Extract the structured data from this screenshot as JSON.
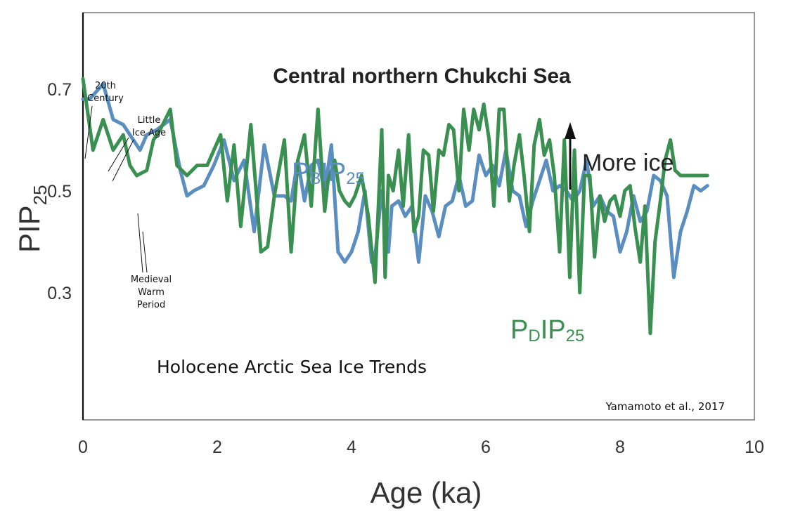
{
  "chart_data": {
    "type": "line",
    "title": "Central northern Chukchi Sea",
    "subtitle": "Holocene Arctic Sea Ice Trends",
    "xlabel": "Age (ka)",
    "ylabel": {
      "main": "PIP",
      "sub": "25"
    },
    "xlim": [
      0,
      10
    ],
    "ylim": [
      0.05,
      0.85
    ],
    "x_ticks": [
      "0",
      "2",
      "4",
      "6",
      "8",
      "10"
    ],
    "y_ticks": [
      "0.7",
      "0.5",
      "0.3"
    ],
    "y_tick_values": [
      0.7,
      0.5,
      0.3
    ],
    "x_tick_values": [
      0,
      2,
      4,
      6,
      8,
      10
    ],
    "grid": false,
    "credit": "Yamamoto et al., 2017",
    "arrow_label": "More ice",
    "annotations": {
      "twentieth": [
        "20th",
        "Century"
      ],
      "lia": [
        "Little",
        "Ice Age"
      ],
      "mwp": [
        "Medieval",
        "Warm",
        "Period"
      ]
    },
    "series": [
      {
        "name": "PBIP25",
        "label_main": "P",
        "label_sub": "B",
        "label_main2": "IP",
        "label_sub2": "25",
        "color": "#5b8ec0",
        "x": [
          0.0,
          0.1,
          0.3,
          0.45,
          0.6,
          0.75,
          0.85,
          0.95,
          1.1,
          1.3,
          1.45,
          1.55,
          1.65,
          1.8,
          1.95,
          2.1,
          2.25,
          2.4,
          2.55,
          2.7,
          2.85,
          3.0,
          3.1,
          3.2,
          3.3,
          3.4,
          3.5,
          3.6,
          3.7,
          3.8,
          3.9,
          4.0,
          4.1,
          4.2,
          4.3,
          4.35,
          4.45,
          4.55,
          4.6,
          4.7,
          4.8,
          4.9,
          5.0,
          5.1,
          5.2,
          5.3,
          5.4,
          5.5,
          5.6,
          5.7,
          5.8,
          5.9,
          6.0,
          6.1,
          6.2,
          6.3,
          6.4,
          6.5,
          6.6,
          6.7,
          6.8,
          6.9,
          7.0,
          7.1,
          7.2,
          7.3,
          7.4,
          7.5,
          7.6,
          7.7,
          7.8,
          7.9,
          8.0,
          8.1,
          8.2,
          8.3,
          8.4,
          8.5,
          8.6,
          8.7,
          8.8,
          8.9,
          9.0,
          9.1,
          9.2,
          9.3
        ],
        "y": [
          0.68,
          0.68,
          0.71,
          0.64,
          0.63,
          0.6,
          0.58,
          0.61,
          0.62,
          0.64,
          0.54,
          0.49,
          0.5,
          0.51,
          0.55,
          0.6,
          0.52,
          0.56,
          0.42,
          0.59,
          0.49,
          0.49,
          0.48,
          0.56,
          0.48,
          0.55,
          0.56,
          0.5,
          0.59,
          0.38,
          0.36,
          0.38,
          0.42,
          0.5,
          0.36,
          0.37,
          0.5,
          0.38,
          0.47,
          0.48,
          0.45,
          0.47,
          0.36,
          0.49,
          0.46,
          0.41,
          0.47,
          0.48,
          0.53,
          0.47,
          0.48,
          0.57,
          0.53,
          0.55,
          0.51,
          0.58,
          0.5,
          0.49,
          0.43,
          0.48,
          0.52,
          0.56,
          0.5,
          0.51,
          0.5,
          0.48,
          0.5,
          0.56,
          0.47,
          0.49,
          0.46,
          0.45,
          0.38,
          0.42,
          0.49,
          0.44,
          0.46,
          0.53,
          0.52,
          0.49,
          0.33,
          0.42,
          0.46,
          0.51,
          0.5,
          0.51
        ]
      },
      {
        "name": "PDIP25",
        "label_main": "P",
        "label_sub": "D",
        "label_main2": "IP",
        "label_sub2": "25",
        "color": "#3a9050",
        "x": [
          0.0,
          0.15,
          0.3,
          0.45,
          0.6,
          0.7,
          0.8,
          0.95,
          1.05,
          1.15,
          1.3,
          1.4,
          1.55,
          1.7,
          1.85,
          2.05,
          2.15,
          2.25,
          2.35,
          2.5,
          2.65,
          2.75,
          2.85,
          3.0,
          3.1,
          3.2,
          3.3,
          3.4,
          3.5,
          3.6,
          3.65,
          3.75,
          3.82,
          3.9,
          3.97,
          4.05,
          4.15,
          4.25,
          4.35,
          4.45,
          4.5,
          4.55,
          4.62,
          4.7,
          4.77,
          4.85,
          4.93,
          5.0,
          5.07,
          5.15,
          5.22,
          5.3,
          5.37,
          5.45,
          5.52,
          5.6,
          5.67,
          5.75,
          5.82,
          5.9,
          5.97,
          6.05,
          6.12,
          6.2,
          6.27,
          6.35,
          6.42,
          6.5,
          6.57,
          6.65,
          6.72,
          6.8,
          6.87,
          6.95,
          7.02,
          7.1,
          7.17,
          7.25,
          7.32,
          7.4,
          7.47,
          7.55,
          7.62,
          7.7,
          7.77,
          7.85,
          7.92,
          8.0,
          8.07,
          8.15,
          8.22,
          8.3,
          8.37,
          8.45,
          8.52,
          8.6,
          8.67,
          8.75,
          8.82,
          8.9,
          8.97,
          9.05,
          9.12,
          9.2,
          9.3
        ],
        "y": [
          0.72,
          0.58,
          0.64,
          0.58,
          0.61,
          0.55,
          0.53,
          0.54,
          0.6,
          0.62,
          0.66,
          0.55,
          0.53,
          0.55,
          0.55,
          0.61,
          0.48,
          0.59,
          0.43,
          0.63,
          0.38,
          0.39,
          0.49,
          0.6,
          0.38,
          0.56,
          0.61,
          0.47,
          0.66,
          0.46,
          0.52,
          0.56,
          0.5,
          0.48,
          0.47,
          0.49,
          0.53,
          0.45,
          0.32,
          0.62,
          0.33,
          0.53,
          0.5,
          0.58,
          0.47,
          0.61,
          0.42,
          0.45,
          0.58,
          0.57,
          0.46,
          0.58,
          0.57,
          0.63,
          0.62,
          0.5,
          0.66,
          0.58,
          0.66,
          0.62,
          0.67,
          0.6,
          0.47,
          0.66,
          0.66,
          0.48,
          0.55,
          0.61,
          0.53,
          0.42,
          0.59,
          0.64,
          0.57,
          0.6,
          0.53,
          0.38,
          0.6,
          0.33,
          0.58,
          0.3,
          0.53,
          0.53,
          0.37,
          0.49,
          0.44,
          0.48,
          0.49,
          0.45,
          0.5,
          0.51,
          0.43,
          0.36,
          0.47,
          0.22,
          0.4,
          0.48,
          0.56,
          0.6,
          0.54,
          0.53,
          0.53,
          0.53,
          0.53,
          0.53,
          0.53
        ]
      }
    ]
  }
}
